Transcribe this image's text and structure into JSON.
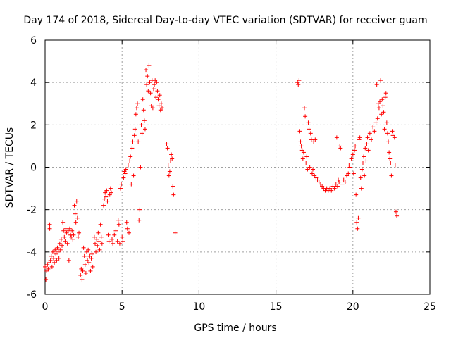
{
  "chart_data": {
    "type": "scatter",
    "title": "Day 174 of 2018, Sidereal Day-to-day VTEC variation (SDTVAR) for receiver guam",
    "xlabel": "GPS time / hours",
    "ylabel": "SDTVAR / TECUs",
    "xlim": [
      0,
      25
    ],
    "ylim": [
      -6,
      6
    ],
    "xticks": [
      "0",
      "5",
      "10",
      "15",
      "20",
      "25"
    ],
    "yticks": [
      "6",
      "4",
      "2",
      "0",
      "-2",
      "-4",
      "-6"
    ],
    "grid": true,
    "marker": "+",
    "series": [
      {
        "name": "SDTVAR",
        "color": "#ff0000",
        "points": [
          [
            0.0,
            -4.7
          ],
          [
            0.05,
            -5.3
          ],
          [
            0.1,
            -4.9
          ],
          [
            0.15,
            -4.6
          ],
          [
            0.2,
            -4.8
          ],
          [
            0.25,
            -4.5
          ],
          [
            0.3,
            -2.7
          ],
          [
            0.3,
            -2.9
          ],
          [
            0.35,
            -4.4
          ],
          [
            0.4,
            -4.2
          ],
          [
            0.45,
            -4.7
          ],
          [
            0.5,
            -4.0
          ],
          [
            0.55,
            -4.3
          ],
          [
            0.6,
            -4.5
          ],
          [
            0.65,
            -3.9
          ],
          [
            0.7,
            -4.1
          ],
          [
            0.75,
            -4.4
          ],
          [
            0.8,
            -3.8
          ],
          [
            0.85,
            -4.0
          ],
          [
            0.9,
            -4.3
          ],
          [
            0.95,
            -3.6
          ],
          [
            1.0,
            -3.9
          ],
          [
            1.05,
            -3.4
          ],
          [
            1.1,
            -3.7
          ],
          [
            1.15,
            -2.6
          ],
          [
            1.2,
            -3.0
          ],
          [
            1.25,
            -3.3
          ],
          [
            1.3,
            -3.5
          ],
          [
            1.35,
            -2.9
          ],
          [
            1.4,
            -3.1
          ],
          [
            1.45,
            -3.6
          ],
          [
            1.5,
            -3.0
          ],
          [
            1.55,
            -4.4
          ],
          [
            1.6,
            -2.9
          ],
          [
            1.65,
            -3.2
          ],
          [
            1.7,
            -3.3
          ],
          [
            1.75,
            -3.0
          ],
          [
            1.8,
            -3.4
          ],
          [
            1.85,
            -3.2
          ],
          [
            1.9,
            -1.8
          ],
          [
            1.95,
            -2.2
          ],
          [
            2.0,
            -2.6
          ],
          [
            2.05,
            -1.6
          ],
          [
            2.1,
            -2.4
          ],
          [
            2.15,
            -3.3
          ],
          [
            2.2,
            -3.1
          ],
          [
            2.3,
            -5.1
          ],
          [
            2.35,
            -4.8
          ],
          [
            2.4,
            -5.3
          ],
          [
            2.45,
            -4.9
          ],
          [
            2.5,
            -3.8
          ],
          [
            2.55,
            -4.2
          ],
          [
            2.6,
            -4.6
          ],
          [
            2.65,
            -5.0
          ],
          [
            2.7,
            -4.0
          ],
          [
            2.75,
            -4.4
          ],
          [
            2.8,
            -3.9
          ],
          [
            2.85,
            -4.5
          ],
          [
            2.9,
            -4.2
          ],
          [
            2.95,
            -4.9
          ],
          [
            3.0,
            -4.3
          ],
          [
            3.05,
            -4.1
          ],
          [
            3.1,
            -4.7
          ],
          [
            3.2,
            -3.3
          ],
          [
            3.25,
            -3.6
          ],
          [
            3.3,
            -4.0
          ],
          [
            3.35,
            -3.4
          ],
          [
            3.4,
            -3.7
          ],
          [
            3.45,
            -3.1
          ],
          [
            3.5,
            -3.5
          ],
          [
            3.55,
            -3.9
          ],
          [
            3.6,
            -2.7
          ],
          [
            3.65,
            -3.3
          ],
          [
            3.7,
            -3.6
          ],
          [
            3.8,
            -1.8
          ],
          [
            3.85,
            -1.5
          ],
          [
            3.9,
            -1.2
          ],
          [
            3.95,
            -1.4
          ],
          [
            4.0,
            -1.1
          ],
          [
            4.05,
            -1.6
          ],
          [
            4.1,
            -3.2
          ],
          [
            4.15,
            -3.5
          ],
          [
            4.2,
            -1.3
          ],
          [
            4.25,
            -1.0
          ],
          [
            4.3,
            -1.2
          ],
          [
            4.35,
            -3.4
          ],
          [
            4.4,
            -3.6
          ],
          [
            4.5,
            -3.2
          ],
          [
            4.6,
            -3.0
          ],
          [
            4.7,
            -3.5
          ],
          [
            4.75,
            -2.5
          ],
          [
            4.8,
            -2.7
          ],
          [
            4.85,
            -3.6
          ],
          [
            4.9,
            -1.0
          ],
          [
            4.95,
            -0.8
          ],
          [
            5.0,
            -3.3
          ],
          [
            5.05,
            -3.5
          ],
          [
            5.1,
            -0.5
          ],
          [
            5.15,
            -0.2
          ],
          [
            5.2,
            -0.3
          ],
          [
            5.25,
            -0.1
          ],
          [
            5.3,
            -2.6
          ],
          [
            5.35,
            -2.9
          ],
          [
            5.4,
            0.1
          ],
          [
            5.45,
            -3.1
          ],
          [
            5.5,
            0.3
          ],
          [
            5.55,
            0.5
          ],
          [
            5.6,
            -0.8
          ],
          [
            5.65,
            0.9
          ],
          [
            5.7,
            1.2
          ],
          [
            5.75,
            -0.4
          ],
          [
            5.8,
            1.5
          ],
          [
            5.85,
            1.8
          ],
          [
            5.9,
            2.5
          ],
          [
            5.95,
            2.8
          ],
          [
            6.0,
            3.0
          ],
          [
            6.05,
            1.2
          ],
          [
            6.1,
            -2.5
          ],
          [
            6.15,
            -2.0
          ],
          [
            6.2,
            0.0
          ],
          [
            6.25,
            2.0
          ],
          [
            6.3,
            1.6
          ],
          [
            6.35,
            3.2
          ],
          [
            6.4,
            2.7
          ],
          [
            6.45,
            2.2
          ],
          [
            6.5,
            1.8
          ],
          [
            6.55,
            4.6
          ],
          [
            6.6,
            3.9
          ],
          [
            6.65,
            4.3
          ],
          [
            6.7,
            3.6
          ],
          [
            6.75,
            4.8
          ],
          [
            6.8,
            4.0
          ],
          [
            6.85,
            3.5
          ],
          [
            6.9,
            2.9
          ],
          [
            6.95,
            4.1
          ],
          [
            7.0,
            2.8
          ],
          [
            7.05,
            3.7
          ],
          [
            7.1,
            3.9
          ],
          [
            7.15,
            4.1
          ],
          [
            7.2,
            3.3
          ],
          [
            7.25,
            4.0
          ],
          [
            7.3,
            3.6
          ],
          [
            7.35,
            3.2
          ],
          [
            7.4,
            2.9
          ],
          [
            7.45,
            3.4
          ],
          [
            7.5,
            2.7
          ],
          [
            7.55,
            3.0
          ],
          [
            7.6,
            2.8
          ],
          [
            7.9,
            1.1
          ],
          [
            7.95,
            0.9
          ],
          [
            8.0,
            0.1
          ],
          [
            8.05,
            -0.4
          ],
          [
            8.1,
            -0.2
          ],
          [
            8.15,
            0.3
          ],
          [
            8.2,
            0.6
          ],
          [
            8.25,
            0.4
          ],
          [
            8.3,
            -0.9
          ],
          [
            8.35,
            -1.3
          ],
          [
            8.45,
            -3.1
          ],
          [
            16.4,
            4.0
          ],
          [
            16.45,
            3.9
          ],
          [
            16.5,
            4.1
          ],
          [
            16.55,
            1.7
          ],
          [
            16.6,
            1.2
          ],
          [
            16.65,
            1.0
          ],
          [
            16.7,
            0.8
          ],
          [
            16.75,
            0.4
          ],
          [
            16.8,
            0.7
          ],
          [
            16.85,
            2.8
          ],
          [
            16.9,
            2.4
          ],
          [
            16.95,
            0.2
          ],
          [
            17.0,
            0.5
          ],
          [
            17.05,
            -0.1
          ],
          [
            17.1,
            2.1
          ],
          [
            17.15,
            1.8
          ],
          [
            17.2,
            0.0
          ],
          [
            17.25,
            1.6
          ],
          [
            17.3,
            1.3
          ],
          [
            17.35,
            -0.3
          ],
          [
            17.4,
            -0.1
          ],
          [
            17.45,
            1.2
          ],
          [
            17.5,
            -0.4
          ],
          [
            17.55,
            1.3
          ],
          [
            17.6,
            -0.5
          ],
          [
            17.7,
            -0.6
          ],
          [
            17.8,
            -0.7
          ],
          [
            17.9,
            -0.8
          ],
          [
            18.0,
            -0.9
          ],
          [
            18.1,
            -1.0
          ],
          [
            18.2,
            -1.1
          ],
          [
            18.3,
            -1.0
          ],
          [
            18.4,
            -1.1
          ],
          [
            18.5,
            -1.0
          ],
          [
            18.6,
            -1.1
          ],
          [
            18.7,
            -0.9
          ],
          [
            18.8,
            -1.0
          ],
          [
            18.9,
            -0.8
          ],
          [
            18.95,
            1.4
          ],
          [
            19.0,
            -0.9
          ],
          [
            19.05,
            -0.6
          ],
          [
            19.1,
            -0.7
          ],
          [
            19.15,
            1.0
          ],
          [
            19.2,
            0.9
          ],
          [
            19.3,
            -0.8
          ],
          [
            19.4,
            -0.6
          ],
          [
            19.5,
            -0.7
          ],
          [
            19.6,
            -0.4
          ],
          [
            19.7,
            -0.3
          ],
          [
            19.75,
            0.1
          ],
          [
            19.8,
            0.0
          ],
          [
            19.9,
            0.4
          ],
          [
            20.0,
            0.6
          ],
          [
            20.05,
            -0.3
          ],
          [
            20.1,
            0.8
          ],
          [
            20.15,
            1.0
          ],
          [
            20.2,
            -1.3
          ],
          [
            20.25,
            -2.6
          ],
          [
            20.3,
            -2.9
          ],
          [
            20.35,
            -2.4
          ],
          [
            20.4,
            1.3
          ],
          [
            20.45,
            1.4
          ],
          [
            20.5,
            -0.5
          ],
          [
            20.55,
            -1.0
          ],
          [
            20.6,
            -0.1
          ],
          [
            20.65,
            0.2
          ],
          [
            20.7,
            0.5
          ],
          [
            20.75,
            -0.4
          ],
          [
            20.8,
            0.9
          ],
          [
            20.85,
            0.3
          ],
          [
            20.9,
            1.1
          ],
          [
            20.95,
            1.4
          ],
          [
            21.0,
            0.8
          ],
          [
            21.1,
            1.6
          ],
          [
            21.2,
            1.3
          ],
          [
            21.3,
            1.9
          ],
          [
            21.4,
            1.7
          ],
          [
            21.5,
            2.1
          ],
          [
            21.55,
            3.9
          ],
          [
            21.6,
            2.3
          ],
          [
            21.65,
            3.0
          ],
          [
            21.7,
            2.8
          ],
          [
            21.75,
            3.1
          ],
          [
            21.8,
            4.1
          ],
          [
            21.85,
            2.5
          ],
          [
            21.9,
            3.2
          ],
          [
            21.95,
            2.9
          ],
          [
            22.0,
            2.6
          ],
          [
            22.05,
            1.8
          ],
          [
            22.1,
            3.3
          ],
          [
            22.15,
            3.5
          ],
          [
            22.2,
            2.1
          ],
          [
            22.25,
            1.6
          ],
          [
            22.3,
            1.2
          ],
          [
            22.35,
            0.7
          ],
          [
            22.4,
            0.4
          ],
          [
            22.45,
            0.2
          ],
          [
            22.5,
            -0.4
          ],
          [
            22.55,
            1.7
          ],
          [
            22.6,
            1.5
          ],
          [
            22.7,
            1.4
          ],
          [
            22.75,
            0.1
          ],
          [
            22.8,
            -2.1
          ],
          [
            22.85,
            -2.3
          ]
        ]
      }
    ]
  }
}
